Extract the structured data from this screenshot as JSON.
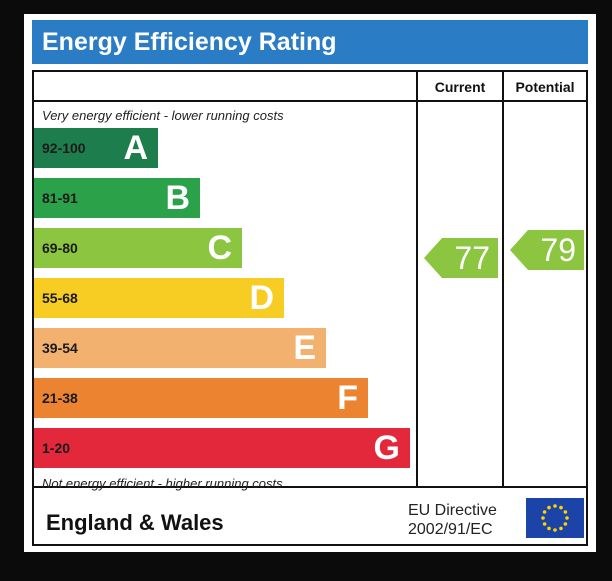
{
  "title": "Energy Efficiency Rating",
  "columns": {
    "current": "Current",
    "potential": "Potential"
  },
  "top_caption": "Very energy efficient - lower running costs",
  "bottom_caption": "Not energy efficient - higher running costs",
  "footer": {
    "country": "England & Wales",
    "directive_line1": "EU Directive",
    "directive_line2": "2002/91/EC",
    "flag_icon": "eu-flag-icon"
  },
  "chart_data": {
    "type": "bar",
    "categories": [
      "A",
      "B",
      "C",
      "D",
      "E",
      "F",
      "G"
    ],
    "bands": [
      {
        "letter": "A",
        "range": "92-100",
        "color": "#1e7d4d"
      },
      {
        "letter": "B",
        "range": "81-91",
        "color": "#2ba14a"
      },
      {
        "letter": "C",
        "range": "69-80",
        "color": "#8cc540"
      },
      {
        "letter": "D",
        "range": "55-68",
        "color": "#f7cd24"
      },
      {
        "letter": "E",
        "range": "39-54",
        "color": "#f2b16f"
      },
      {
        "letter": "F",
        "range": "21-38",
        "color": "#ec8330"
      },
      {
        "letter": "G",
        "range": "1-20",
        "color": "#e3283b"
      }
    ],
    "current": {
      "value": 77,
      "band": "C",
      "color": "#8cc540"
    },
    "potential": {
      "value": 79,
      "band": "C",
      "color": "#8cc540"
    }
  }
}
